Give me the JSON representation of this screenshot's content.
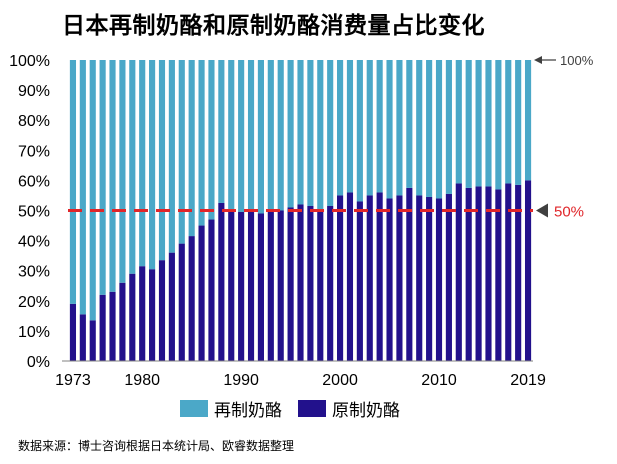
{
  "title": "日本再制奶酪和原制奶酪消费量占比变化",
  "source": "数据来源：博士咨询根据日本统计局、欧睿数据整理",
  "colors": {
    "processed": "#4BA8C8",
    "natural": "#22118C",
    "reference": "#E0262A",
    "axis": "#808080"
  },
  "legend": [
    {
      "label": "再制奶酪",
      "color": "#4BA8C8"
    },
    {
      "label": "原制奶酪",
      "color": "#22118C"
    }
  ],
  "annotations": {
    "top_marker": "100%",
    "reference_label": "50%"
  },
  "chart_data": {
    "type": "bar",
    "stacked": true,
    "ylim": [
      0,
      100
    ],
    "yticks": [
      "0%",
      "10%",
      "20%",
      "30%",
      "40%",
      "50%",
      "60%",
      "70%",
      "80%",
      "90%",
      "100%"
    ],
    "xtick_labels": [
      "1973",
      "1980",
      "1990",
      "2000",
      "2010",
      "2019"
    ],
    "reference_line": 50,
    "categories": [
      1973,
      1974,
      1975,
      1976,
      1977,
      1978,
      1979,
      1980,
      1981,
      1982,
      1983,
      1984,
      1985,
      1986,
      1987,
      1988,
      1989,
      1990,
      1991,
      1992,
      1993,
      1994,
      1995,
      1996,
      1997,
      1998,
      1999,
      2000,
      2001,
      2002,
      2003,
      2004,
      2005,
      2006,
      2007,
      2008,
      2009,
      2010,
      2011,
      2012,
      2013,
      2014,
      2015,
      2016,
      2017,
      2018,
      2019
    ],
    "series": [
      {
        "name": "原制奶酪",
        "values": [
          19,
          15.5,
          13.5,
          22,
          23,
          26,
          29,
          31.5,
          30.5,
          33.5,
          36,
          39,
          41.5,
          45,
          47,
          52.5,
          50,
          49.5,
          50.5,
          49,
          50,
          50,
          51,
          52,
          51.5,
          50,
          51.5,
          55,
          56,
          53,
          55,
          56,
          54,
          55,
          57.5,
          55,
          54.5,
          54,
          55.5,
          59,
          57.5,
          58,
          58,
          57,
          59,
          58.5,
          60
        ]
      },
      {
        "name": "再制奶酪",
        "values": [
          81,
          84.5,
          86.5,
          78,
          77,
          74,
          71,
          68.5,
          69.5,
          66.5,
          64,
          61,
          58.5,
          55,
          53,
          47.5,
          50,
          50.5,
          49.5,
          51,
          50,
          50,
          49,
          48,
          48.5,
          50,
          48.5,
          45,
          44,
          47,
          45,
          44,
          46,
          45,
          42.5,
          45,
          45.5,
          46,
          44.5,
          41,
          42.5,
          42,
          42,
          43,
          41,
          41.5,
          40
        ]
      }
    ]
  }
}
